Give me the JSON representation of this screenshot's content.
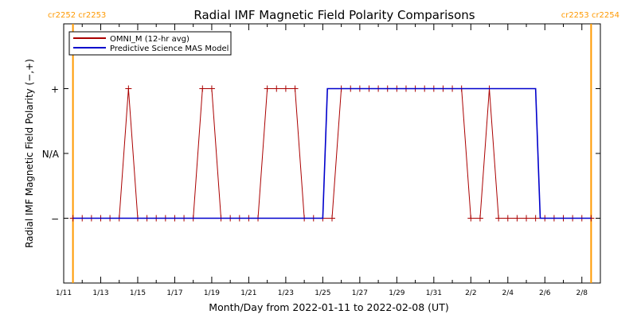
{
  "chart_data": {
    "type": "line",
    "title": "Radial IMF Magnetic Field Polarity Comparisons",
    "xlabel": "Month/Day from 2022-01-11 to 2022-02-08 (UT)",
    "ylabel": "Radial IMF Magnetic Field Polarity (−,+)",
    "xlim": [
      "2022-01-11T00:00",
      "2022-02-08T24:00"
    ],
    "x_tick_labels": [
      "1/11",
      "1/13",
      "1/15",
      "1/17",
      "1/19",
      "1/21",
      "1/23",
      "1/25",
      "1/27",
      "1/29",
      "1/31",
      "2/2",
      "2/4",
      "2/6",
      "2/8"
    ],
    "y_levels": [
      -1,
      0,
      1
    ],
    "y_tick_labels": [
      "−",
      "N/A",
      "+"
    ],
    "ylim": [
      -2,
      2
    ],
    "legend_position": "top-left",
    "carrington_markers": [
      {
        "x": "2022-01-11T12:00",
        "label": "cr2252 cr2253",
        "color": "#ff9900"
      },
      {
        "x": "2022-02-08T12:00",
        "label": "cr2253 cr2254",
        "color": "#ff9900"
      }
    ],
    "series": [
      {
        "name": "OMNI_M (12-hr avg)",
        "color": "#aa0000",
        "marker": "plus",
        "x": [
          "2022-01-11T12:00",
          "2022-01-12T00:00",
          "2022-01-12T12:00",
          "2022-01-13T00:00",
          "2022-01-13T12:00",
          "2022-01-14T00:00",
          "2022-01-14T12:00",
          "2022-01-15T00:00",
          "2022-01-15T12:00",
          "2022-01-16T00:00",
          "2022-01-16T12:00",
          "2022-01-17T00:00",
          "2022-01-17T12:00",
          "2022-01-18T00:00",
          "2022-01-18T12:00",
          "2022-01-19T00:00",
          "2022-01-19T12:00",
          "2022-01-20T00:00",
          "2022-01-20T12:00",
          "2022-01-21T00:00",
          "2022-01-21T12:00",
          "2022-01-22T00:00",
          "2022-01-22T12:00",
          "2022-01-23T00:00",
          "2022-01-23T12:00",
          "2022-01-24T00:00",
          "2022-01-24T12:00",
          "2022-01-25T00:00",
          "2022-01-25T12:00",
          "2022-01-26T00:00",
          "2022-01-26T12:00",
          "2022-01-27T00:00",
          "2022-01-27T12:00",
          "2022-01-28T00:00",
          "2022-01-28T12:00",
          "2022-01-29T00:00",
          "2022-01-29T12:00",
          "2022-01-30T00:00",
          "2022-01-30T12:00",
          "2022-01-31T00:00",
          "2022-01-31T12:00",
          "2022-02-01T00:00",
          "2022-02-01T12:00",
          "2022-02-02T00:00",
          "2022-02-02T12:00",
          "2022-02-03T00:00",
          "2022-02-03T12:00",
          "2022-02-04T00:00",
          "2022-02-04T12:00",
          "2022-02-05T00:00",
          "2022-02-05T12:00",
          "2022-02-06T00:00",
          "2022-02-06T12:00",
          "2022-02-07T00:00",
          "2022-02-07T12:00",
          "2022-02-08T00:00",
          "2022-02-08T12:00"
        ],
        "y": [
          -1,
          -1,
          -1,
          -1,
          -1,
          -1,
          1,
          -1,
          -1,
          -1,
          -1,
          -1,
          -1,
          -1,
          1,
          1,
          -1,
          -1,
          -1,
          -1,
          -1,
          1,
          1,
          1,
          1,
          -1,
          -1,
          -1,
          -1,
          1,
          1,
          1,
          1,
          1,
          1,
          1,
          1,
          1,
          1,
          1,
          1,
          1,
          1,
          -1,
          -1,
          1,
          -1,
          -1,
          -1,
          -1,
          -1,
          -1,
          -1,
          -1,
          -1,
          -1,
          -1
        ]
      },
      {
        "name": "Predictive Science MAS Model",
        "color": "#0000cc",
        "marker": "none",
        "x": [
          "2022-01-11T12:00",
          "2022-01-25T00:00",
          "2022-01-25T06:00",
          "2022-02-05T12:00",
          "2022-02-05T18:00",
          "2022-02-08T12:00"
        ],
        "y": [
          -1,
          -1,
          1,
          1,
          -1,
          -1
        ]
      }
    ]
  }
}
